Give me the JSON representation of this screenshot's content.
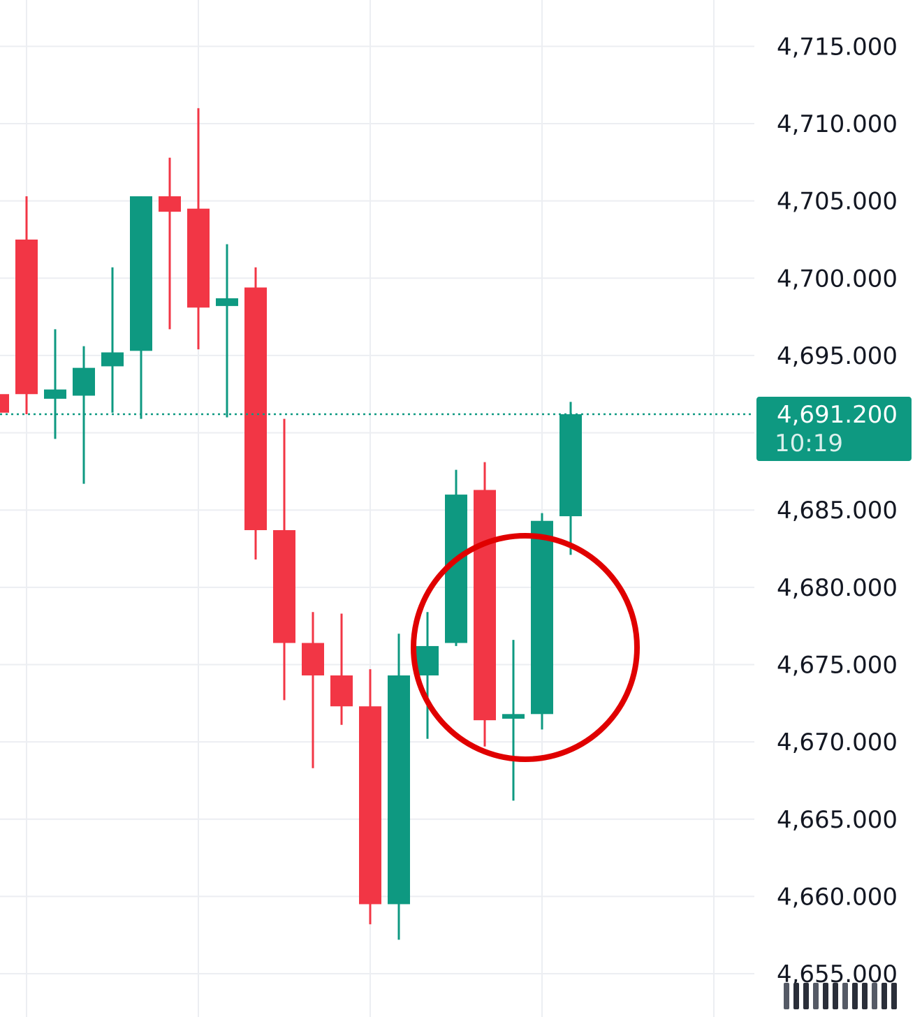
{
  "chart_data": {
    "type": "candlestick",
    "ylim": [
      4652.2,
      4718
    ],
    "y_ticks": [
      "4,710.000",
      "4,705.000",
      "4,700.000",
      "4,695.000",
      "4,685.000",
      "4,680.000",
      "4,675.000",
      "4,670.000",
      "4,665.000",
      "4,660.000",
      "4,655.000"
    ],
    "y_tick_values": [
      4710,
      4705,
      4700,
      4695,
      4685,
      4680,
      4675,
      4670,
      4665,
      4660,
      4655
    ],
    "top_partial_tick": "4,715.000",
    "top_partial_tick_value": 4715,
    "last_price": {
      "value": 4691.2,
      "label": "4,691.200",
      "countdown": "10:19"
    },
    "colors": {
      "up": "#0e9981",
      "down": "#f23645",
      "grid": "#eceef2",
      "highlight": "#e00000",
      "price_line": "#0e9981"
    },
    "candles": [
      {
        "open": 4692.5,
        "high": 4693.8,
        "low": 4689.6,
        "close": 4691.3
      },
      {
        "open": 4702.5,
        "high": 4705.3,
        "low": 4691.2,
        "close": 4692.5
      },
      {
        "open": 4692.2,
        "high": 4696.7,
        "low": 4689.6,
        "close": 4692.8
      },
      {
        "open": 4692.4,
        "high": 4695.6,
        "low": 4686.7,
        "close": 4694.2
      },
      {
        "open": 4694.3,
        "high": 4700.7,
        "low": 4691.3,
        "close": 4695.2
      },
      {
        "open": 4695.3,
        "high": 4705.3,
        "low": 4690.9,
        "close": 4705.3
      },
      {
        "open": 4705.3,
        "high": 4707.8,
        "low": 4696.7,
        "close": 4704.3
      },
      {
        "open": 4704.5,
        "high": 4711.0,
        "low": 4695.4,
        "close": 4698.1
      },
      {
        "open": 4698.2,
        "high": 4702.2,
        "low": 4691.0,
        "close": 4698.7
      },
      {
        "open": 4699.4,
        "high": 4700.7,
        "low": 4681.8,
        "close": 4683.7
      },
      {
        "open": 4683.7,
        "high": 4690.9,
        "low": 4672.7,
        "close": 4676.4
      },
      {
        "open": 4676.4,
        "high": 4678.4,
        "low": 4668.3,
        "close": 4674.3
      },
      {
        "open": 4674.3,
        "high": 4678.3,
        "low": 4671.1,
        "close": 4672.3
      },
      {
        "open": 4672.3,
        "high": 4674.7,
        "low": 4658.2,
        "close": 4659.5
      },
      {
        "open": 4659.5,
        "high": 4677.0,
        "low": 4657.2,
        "close": 4674.3
      },
      {
        "open": 4674.3,
        "high": 4678.4,
        "low": 4670.2,
        "close": 4676.2
      },
      {
        "open": 4676.4,
        "high": 4687.6,
        "low": 4676.2,
        "close": 4686.0
      },
      {
        "open": 4686.3,
        "high": 4688.1,
        "low": 4669.7,
        "close": 4671.4
      },
      {
        "open": 4671.5,
        "high": 4676.6,
        "low": 4666.2,
        "close": 4671.8
      },
      {
        "open": 4671.8,
        "high": 4684.8,
        "low": 4670.8,
        "close": 4684.3
      },
      {
        "open": 4684.6,
        "high": 4692.0,
        "low": 4682.1,
        "close": 4691.2
      }
    ]
  }
}
